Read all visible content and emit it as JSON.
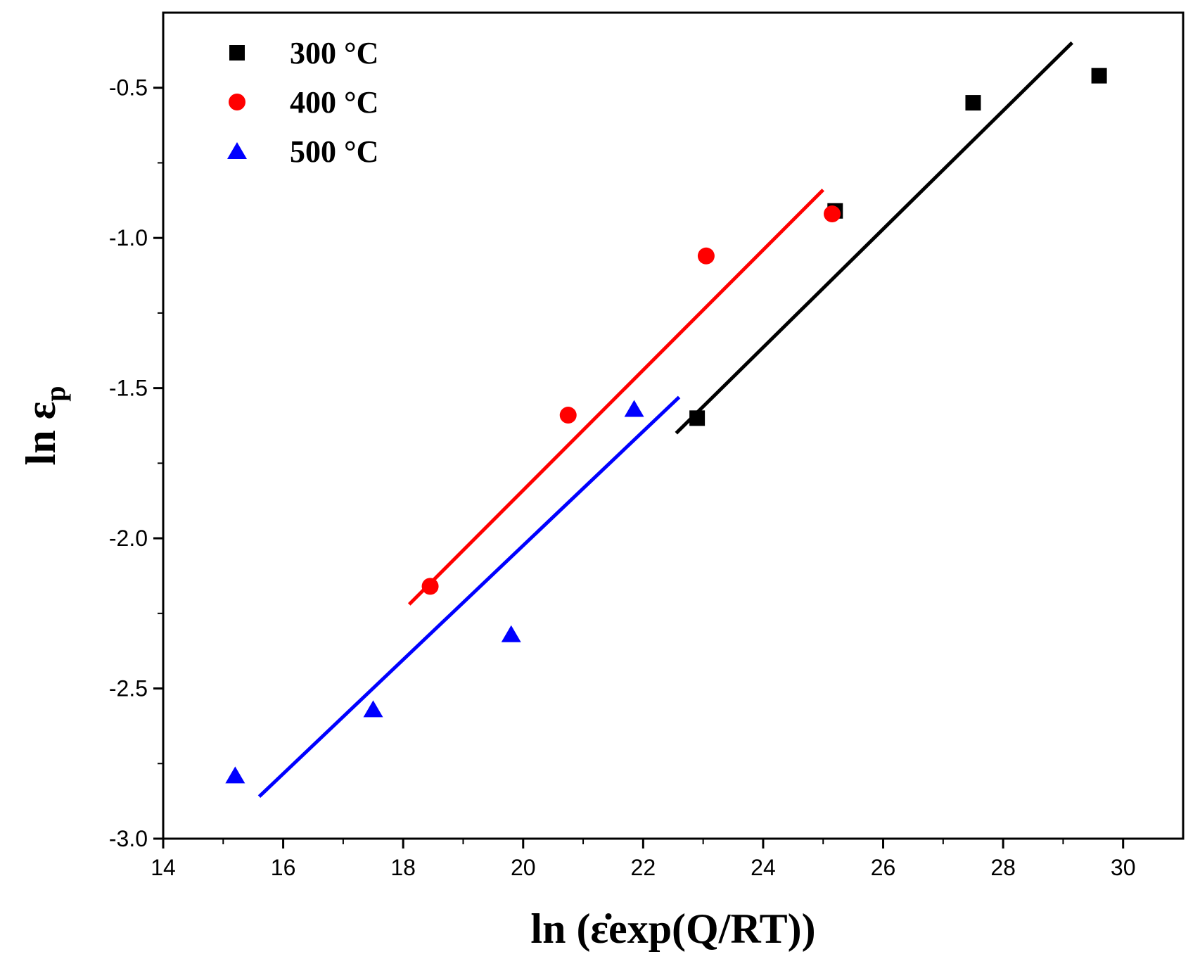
{
  "chart_data": {
    "type": "scatter",
    "xlabel": "ln (ε̇exp(Q/RT))",
    "ylabel_main": "ln ε",
    "ylabel_sub": "p",
    "xlim": [
      14,
      31
    ],
    "ylim": [
      -3.0,
      -0.25
    ],
    "xticks": [
      14,
      16,
      18,
      20,
      22,
      24,
      26,
      28,
      30
    ],
    "yticks": [
      -3.0,
      -2.5,
      -2.0,
      -1.5,
      -1.0,
      -0.5
    ],
    "xtick_labels": [
      "14",
      "16",
      "18",
      "20",
      "22",
      "24",
      "26",
      "28",
      "30"
    ],
    "ytick_labels": [
      "-3.0",
      "-2.5",
      "-2.0",
      "-1.5",
      "-1.0",
      "-0.5"
    ],
    "legend_position": "top-left",
    "grid": false,
    "series": [
      {
        "name": "300 °C",
        "marker": "square",
        "color": "#000000",
        "points": [
          [
            22.9,
            -1.6
          ],
          [
            25.2,
            -0.91
          ],
          [
            27.5,
            -0.55
          ],
          [
            29.6,
            -0.46
          ]
        ],
        "fit": [
          [
            22.55,
            -1.65
          ],
          [
            29.15,
            -0.35
          ]
        ]
      },
      {
        "name": "400 °C",
        "marker": "circle",
        "color": "#ff0000",
        "points": [
          [
            18.45,
            -2.16
          ],
          [
            20.75,
            -1.59
          ],
          [
            23.05,
            -1.06
          ],
          [
            25.15,
            -0.92
          ]
        ],
        "fit": [
          [
            18.1,
            -2.22
          ],
          [
            25.0,
            -0.84
          ]
        ]
      },
      {
        "name": "500 °C",
        "marker": "triangle",
        "color": "#0000ff",
        "points": [
          [
            15.2,
            -2.79
          ],
          [
            17.5,
            -2.57
          ],
          [
            19.8,
            -2.32
          ],
          [
            21.85,
            -1.57
          ]
        ],
        "fit": [
          [
            15.6,
            -2.86
          ],
          [
            22.6,
            -1.53
          ]
        ]
      }
    ]
  }
}
